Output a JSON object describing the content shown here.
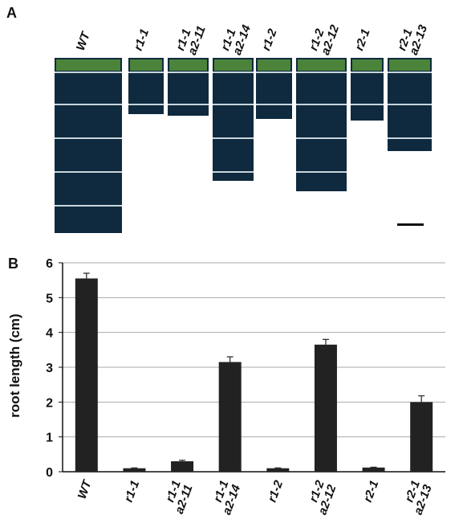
{
  "panel_a": {
    "label": "A",
    "genotypes": [
      "WT",
      "r1-1",
      "r1-1\na2-11",
      "r1-1\na2-14",
      "r1-2",
      "r1-2\na2-12",
      "r2-1",
      "r2-1\na2-13"
    ]
  },
  "chart_data": {
    "type": "bar",
    "panel_label": "B",
    "ylabel": "root length (cm)",
    "categories": [
      "WT",
      "r1-1",
      "r1-1\na2-11",
      "r1-1\na2-14",
      "r1-2",
      "r1-2\na2-12",
      "r2-1",
      "r2-1\na2-13"
    ],
    "values": [
      5.55,
      0.1,
      0.3,
      3.15,
      0.1,
      3.65,
      0.12,
      2.0
    ],
    "errors": [
      0.15,
      0.01,
      0.03,
      0.15,
      0.01,
      0.15,
      0.01,
      0.18
    ],
    "color": "#222222",
    "ylim": [
      0,
      6
    ],
    "yticks": [
      0,
      1,
      2,
      3,
      4,
      5,
      6
    ],
    "grid": true
  }
}
